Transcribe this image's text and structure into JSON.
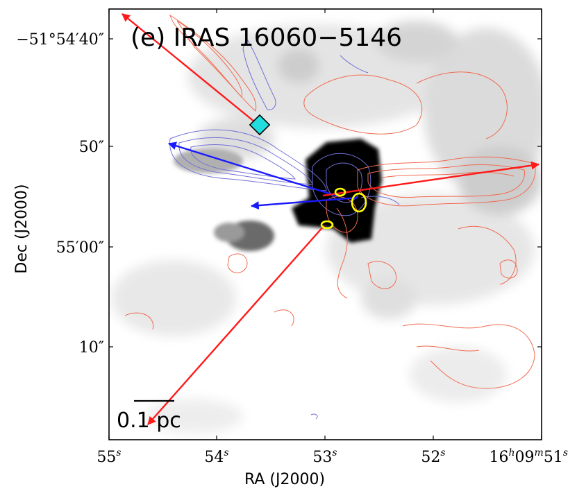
{
  "panel_title": "(e) IRAS 16060−5146",
  "x_axis": {
    "label": "RA (J2000)",
    "ticks": [
      {
        "prefix": "55",
        "sup": "s",
        "suffix": ""
      },
      {
        "prefix": "54",
        "sup": "s",
        "suffix": ""
      },
      {
        "prefix": "53",
        "sup": "s",
        "suffix": ""
      },
      {
        "prefix": "52",
        "sup": "s",
        "suffix": ""
      },
      {
        "prefix": "16",
        "sup": "h",
        "mid": "09",
        "sup2": "m",
        "suffix": "51",
        "sup3": "s"
      }
    ]
  },
  "y_axis": {
    "label": "Dec (J2000)",
    "ticks": [
      {
        "text": "−51°54′40″"
      },
      {
        "text": "50″"
      },
      {
        "text": "55′00″"
      },
      {
        "text": "10″"
      }
    ]
  },
  "scale_bar": {
    "label": "0.1 pc"
  },
  "colors": {
    "redshifted": "#ff1a1a",
    "blueshifted": "#1a1aff",
    "red_contour": "#f06a50",
    "blue_contour": "#7070d8",
    "source_ellipse": "#ffff00",
    "marker": "#22dddd"
  }
}
